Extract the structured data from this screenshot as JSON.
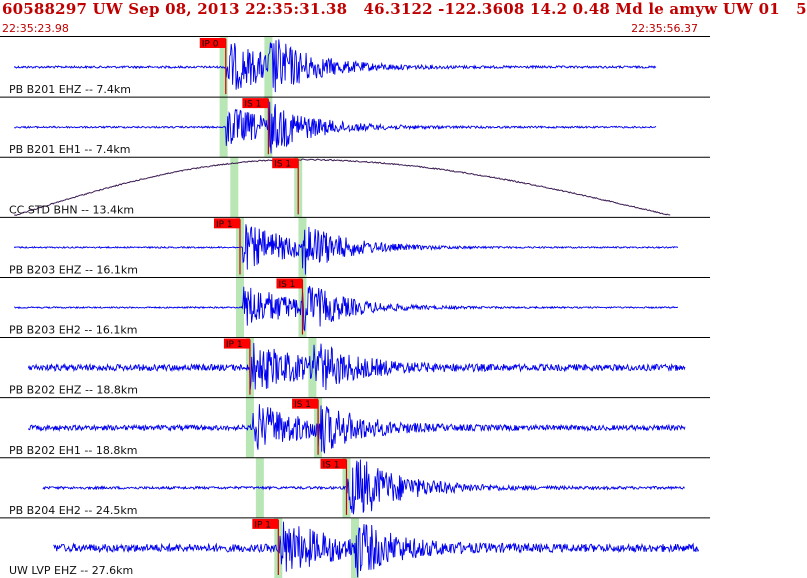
{
  "header": {
    "title": "60588297 UW Sep 08, 2013 22:35:31.38   46.3122 -122.3608 14.2 0.48 Md le amyw UW 01   5",
    "time_start": "22:35:23.98",
    "time_end": "22:35:56.37"
  },
  "colors": {
    "header_text": "#c00000",
    "trace": "#0000ee",
    "trace_lowgain": "#3a1a50",
    "pick_box": "#ff0000",
    "pick_window": "#b9e6b5",
    "divider": "#000000"
  },
  "traces": [
    {
      "label": "PB B201 EHZ -- 7.4km",
      "kind": "blue",
      "picks": [
        {
          "text": "IP 0",
          "t": 0.318
        }
      ],
      "windows": [
        0.315,
        0.378
      ],
      "amp": 1.0,
      "noise": 0.15,
      "onset": 0.318,
      "end": 0.925,
      "start": 0.02
    },
    {
      "label": "PB B201 EH1 -- 7.4km",
      "kind": "blue",
      "picks": [
        {
          "text": "IS 1",
          "t": 0.378
        }
      ],
      "windows": [
        0.315,
        0.378
      ],
      "amp": 0.8,
      "noise": 0.12,
      "onset": 0.318,
      "end": 0.925,
      "start": 0.02
    },
    {
      "label": "CC STD BHN -- 13.4km",
      "kind": "dark",
      "picks": [
        {
          "text": "IS 1",
          "t": 0.42
        }
      ],
      "windows": [
        0.33,
        0.42
      ],
      "amp": 0.0,
      "noise": 0.0,
      "onset": 0.42,
      "end": 0.945,
      "start": 0.02
    },
    {
      "label": "PB B203 EHZ -- 16.1km",
      "kind": "blue",
      "picks": [
        {
          "text": "IP 1",
          "t": 0.338
        }
      ],
      "windows": [
        0.338,
        0.426
      ],
      "amp": 0.9,
      "noise": 0.1,
      "onset": 0.342,
      "end": 0.955,
      "start": 0.02
    },
    {
      "label": "PB B203 EH2 -- 16.1km",
      "kind": "blue",
      "picks": [
        {
          "text": "IS 1",
          "t": 0.426
        }
      ],
      "windows": [
        0.338,
        0.426
      ],
      "amp": 0.9,
      "noise": 0.1,
      "onset": 0.342,
      "end": 0.955,
      "start": 0.02
    },
    {
      "label": "PB B202 EHZ -- 18.8km",
      "kind": "blue",
      "picks": [
        {
          "text": "IP 1",
          "t": 0.352
        }
      ],
      "windows": [
        0.352,
        0.44
      ],
      "amp": 0.9,
      "noise": 0.45,
      "onset": 0.352,
      "end": 0.965,
      "start": 0.04
    },
    {
      "label": "PB B202 EH1 -- 18.8km",
      "kind": "blue",
      "picks": [
        {
          "text": "IS 1",
          "t": 0.448
        }
      ],
      "windows": [
        0.352,
        0.448
      ],
      "amp": 0.9,
      "noise": 0.35,
      "onset": 0.356,
      "end": 0.965,
      "start": 0.04
    },
    {
      "label": "PB B204 EH2 -- 24.5km",
      "kind": "blue",
      "picks": [
        {
          "text": "IS 1",
          "t": 0.488
        }
      ],
      "windows": [
        0.366,
        0.488
      ],
      "amp": 0.8,
      "noise": 0.18,
      "onset": 0.488,
      "end": 0.965,
      "start": 0.06
    },
    {
      "label": "UW LVP EHZ -- 27.6km",
      "kind": "blue",
      "picks": [
        {
          "text": "IP 1",
          "t": 0.392
        }
      ],
      "windows": [
        0.392,
        0.5
      ],
      "amp": 1.0,
      "noise": 0.55,
      "onset": 0.392,
      "end": 0.985,
      "start": 0.075
    }
  ]
}
